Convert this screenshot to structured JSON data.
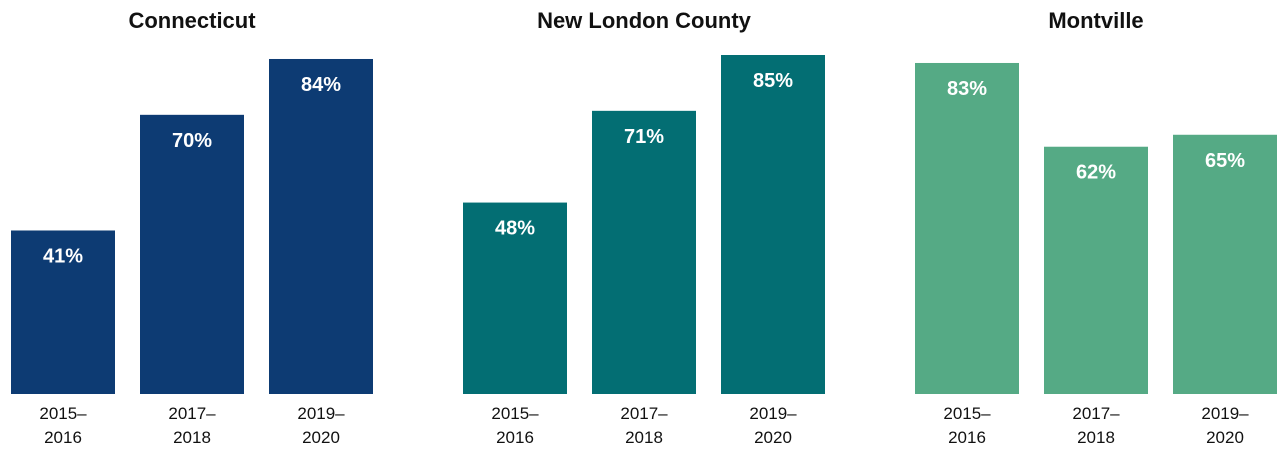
{
  "chart_data": [
    {
      "type": "bar",
      "title": "Connecticut",
      "categories": [
        [
          "2015–",
          "2016"
        ],
        [
          "2017–",
          "2018"
        ],
        [
          "2019–",
          "2020"
        ]
      ],
      "values": [
        41,
        70,
        84
      ],
      "value_labels": [
        "41%",
        "70%",
        "84%"
      ],
      "color": "#0d3b73",
      "ylim": [
        0,
        85
      ],
      "grid": false
    },
    {
      "type": "bar",
      "title": "New London County",
      "categories": [
        [
          "2015–",
          "2016"
        ],
        [
          "2017–",
          "2018"
        ],
        [
          "2019–",
          "2020"
        ]
      ],
      "values": [
        48,
        71,
        85
      ],
      "value_labels": [
        "48%",
        "71%",
        "85%"
      ],
      "color": "#036e73",
      "ylim": [
        0,
        85
      ],
      "grid": false
    },
    {
      "type": "bar",
      "title": "Montville",
      "categories": [
        [
          "2015–",
          "2016"
        ],
        [
          "2017–",
          "2018"
        ],
        [
          "2019–",
          "2020"
        ]
      ],
      "values": [
        83,
        62,
        65
      ],
      "value_labels": [
        "83%",
        "62%",
        "65%"
      ],
      "color": "#55aa85",
      "ylim": [
        0,
        85
      ],
      "grid": false
    }
  ]
}
